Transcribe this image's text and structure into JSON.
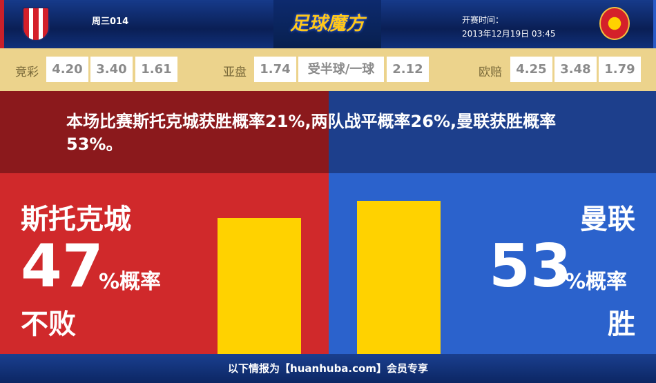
{
  "header": {
    "match_no": "周三014",
    "logo": "足球魔方",
    "kickoff_label": "开赛时间：",
    "kickoff_time": "2013年12月19日 03:45",
    "home_crest": "stoke-city-crest",
    "away_crest": "manchester-united-crest"
  },
  "odds": {
    "jingcai": {
      "label": "竞彩",
      "values": [
        "4.20",
        "3.40",
        "1.61"
      ]
    },
    "yapan": {
      "label": "亚盘",
      "values": [
        "1.74",
        "受半球/一球",
        "2.12"
      ]
    },
    "oupei": {
      "label": "欧赔",
      "values": [
        "4.25",
        "3.48",
        "1.79"
      ]
    }
  },
  "summary": "本场比赛斯托克城获胜概率21%,两队战平概率26%,曼联获胜概率53%。",
  "home": {
    "name": "斯托克城",
    "percent": "47",
    "unit": "%概率",
    "outcome": "不败",
    "value": 47
  },
  "away": {
    "name": "曼联",
    "percent": "53",
    "unit": "%概率",
    "outcome": "胜",
    "value": 53
  },
  "colors": {
    "home": "#d0292b",
    "away": "#2b62cc",
    "bar": "#ffd200",
    "odds_band": "#ecd38c"
  },
  "footer": "以下情报为【huanhuba.com】会员专享"
}
